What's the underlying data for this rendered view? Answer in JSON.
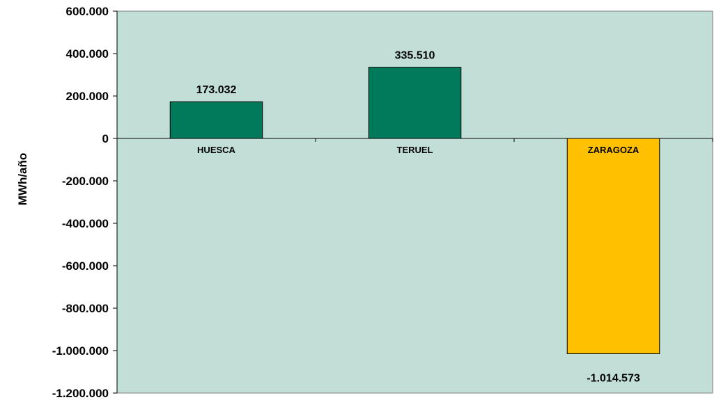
{
  "chart_data": {
    "type": "bar",
    "title": "",
    "xlabel": "",
    "ylabel": "MWh/año",
    "ylim": [
      -1200000,
      600000
    ],
    "yticks": [
      600000,
      400000,
      200000,
      0,
      -200000,
      -400000,
      -600000,
      -800000,
      -1000000,
      -1200000
    ],
    "ytick_labels": [
      "600.000",
      "400.000",
      "200.000",
      "0",
      "-200.000",
      "-400.000",
      "-600.000",
      "-800.000",
      "-1.000.000",
      "-1.200.000"
    ],
    "categories": [
      "HUESCA",
      "TERUEL",
      "ZARAGOZA"
    ],
    "values": [
      173032,
      335510,
      -1014573
    ],
    "value_labels": [
      "173.032",
      "335.510",
      "-1.014.573"
    ],
    "bar_colors": [
      "#007A5A",
      "#007A5A",
      "#FFC000"
    ],
    "plot_background": "#C2DFD7",
    "grid": false,
    "legend": "none"
  }
}
